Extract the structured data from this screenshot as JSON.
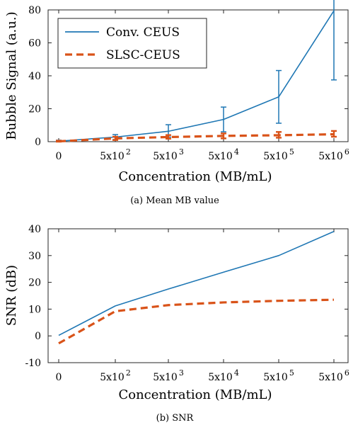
{
  "chart_data": [
    {
      "type": "line",
      "categories": [
        "0",
        "5x10^2",
        "5x10^3",
        "5x10^4",
        "5x10^5",
        "5x10^6"
      ],
      "xlabel": "Concentration (MB/mL)",
      "ylabel": "Bubble Signal (a.u.)",
      "caption": "(a) Mean MB value",
      "ylim": [
        0,
        80
      ],
      "yticks": [
        0,
        20,
        40,
        60,
        80
      ],
      "grid": false,
      "legend_position": "top-left",
      "series": [
        {
          "name": "Conv. CEUS",
          "color": "#1f77b4",
          "line_style": "solid",
          "values": [
            0.3,
            2.8,
            6.3,
            13.5,
            27.2,
            79.5
          ],
          "error_low": [
            0.3,
            1.5,
            3.5,
            7.5,
            16.0,
            42.0
          ],
          "error_high": [
            0.6,
            1.5,
            4.0,
            7.5,
            16.0,
            42.0
          ]
        },
        {
          "name": "SLSC-CEUS",
          "color": "#d95319",
          "line_style": "dashed",
          "values": [
            0.2,
            2.0,
            2.8,
            3.5,
            3.9,
            4.5
          ],
          "error_low": [
            0.2,
            1.0,
            1.0,
            1.5,
            1.5,
            1.5
          ],
          "error_high": [
            0.4,
            1.0,
            1.2,
            1.5,
            2.0,
            2.0
          ]
        }
      ]
    },
    {
      "type": "line",
      "categories": [
        "0",
        "5x10^2",
        "5x10^3",
        "5x10^4",
        "5x10^5",
        "5x10^6"
      ],
      "xlabel": "Concentration (MB/mL)",
      "ylabel": "SNR (dB)",
      "caption": "(b) SNR",
      "ylim": [
        -10,
        40
      ],
      "yticks": [
        -10,
        0,
        10,
        20,
        30,
        40
      ],
      "grid": false,
      "series": [
        {
          "color": "#1f77b4",
          "line_style": "solid",
          "values": [
            0.2,
            11.2,
            17.5,
            23.8,
            30.0,
            39.0
          ]
        },
        {
          "color": "#d95319",
          "line_style": "dashed",
          "values": [
            -2.8,
            9.2,
            11.5,
            12.5,
            13.1,
            13.5
          ]
        }
      ]
    }
  ]
}
